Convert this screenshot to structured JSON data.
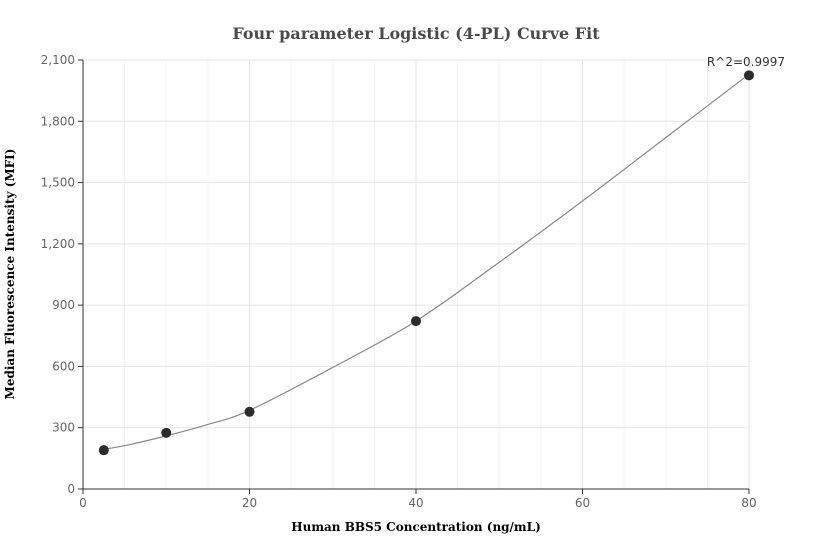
{
  "chart_data": {
    "type": "scatter",
    "title": "Four parameter Logistic (4-PL) Curve Fit",
    "xlabel": "Human BBS5 Concentration (ng/mL)",
    "ylabel": "Median Fluorescence Intensity (MFI)",
    "xlim": [
      0,
      80
    ],
    "ylim": [
      0,
      2100
    ],
    "x_ticks": [
      0,
      20,
      40,
      60,
      80
    ],
    "y_ticks": [
      0,
      300,
      600,
      900,
      1200,
      1500,
      1800,
      2100
    ],
    "x_tick_labels": [
      "0",
      "20",
      "40",
      "60",
      "80"
    ],
    "y_tick_labels": [
      "0",
      "300",
      "600",
      "900",
      "1,200",
      "1,500",
      "1,800",
      "2,100"
    ],
    "grid": true,
    "series": [
      {
        "x": [
          2.5,
          10,
          20,
          40,
          80
        ],
        "y": [
          190,
          275,
          378,
          822,
          2025
        ],
        "color": "#2b2b2b"
      }
    ],
    "fit_curve": {
      "color": "#888888",
      "x": [
        2.5,
        5,
        10,
        15,
        20,
        30,
        40,
        50,
        60,
        70,
        80
      ],
      "y": [
        195,
        212,
        260,
        316,
        385,
        595,
        822,
        1110,
        1410,
        1720,
        2030
      ]
    },
    "annotation": "R^2=0.9997"
  }
}
